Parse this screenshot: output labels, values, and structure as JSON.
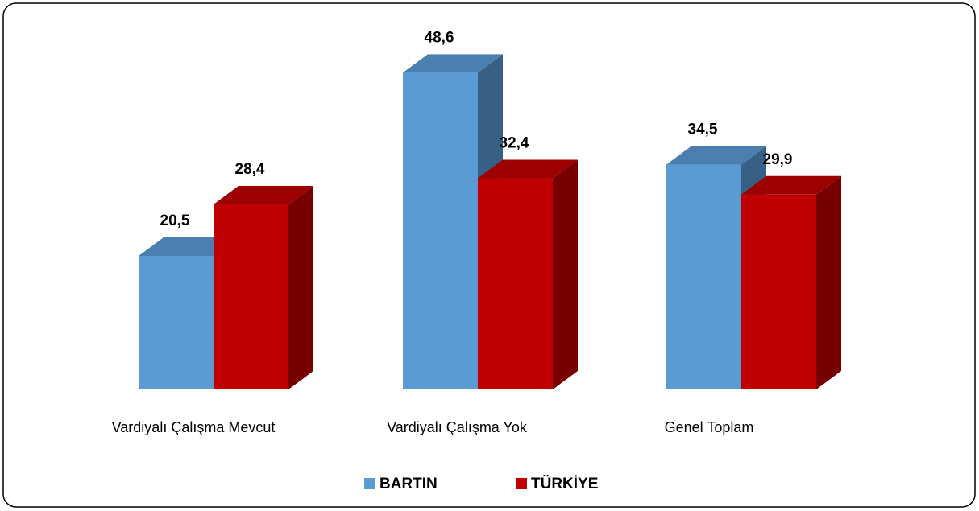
{
  "chart_data": {
    "type": "bar3d",
    "categories": [
      "Vardiyalı Çalışma Mevcut",
      "Vardiyalı Çalışma Yok",
      "Genel Toplam"
    ],
    "series": [
      {
        "name": "BARTIN",
        "color": "#5b9bd5",
        "values": [
          20.5,
          48.6,
          34.5
        ],
        "value_labels": [
          "20,5",
          "48,6",
          "34,5"
        ]
      },
      {
        "name": "TÜRKİYE",
        "color": "#c00000",
        "values": [
          28.4,
          32.4,
          29.9
        ],
        "value_labels": [
          "28,4",
          "32,4",
          "29,9"
        ]
      }
    ],
    "legend": "bottom"
  }
}
